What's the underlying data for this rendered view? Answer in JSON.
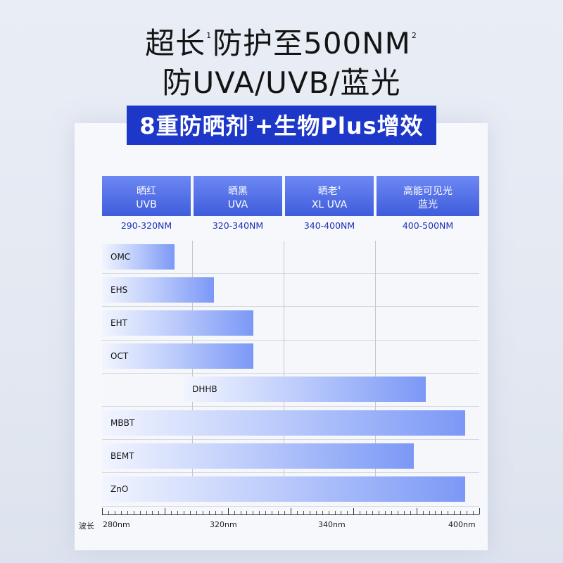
{
  "title": {
    "line1_parts": [
      "超长",
      "1",
      "防护至500NM",
      "2"
    ],
    "line2": "防UVA/UVB/蓝光"
  },
  "banner": {
    "text_before": "8重防晒剂",
    "sup": "3",
    "text_after": "+生物Plus增效"
  },
  "columns": [
    {
      "line1": "晒红",
      "sup": "",
      "line2": "UVB",
      "range": "290-320NM"
    },
    {
      "line1": "晒黑",
      "sup": "",
      "line2": "UVA",
      "range": "320-340NM"
    },
    {
      "line1": "晒老",
      "sup": "4",
      "line2": "XL UVA",
      "range": "340-400NM"
    },
    {
      "line1": "高能可见光",
      "sup": "",
      "line2": "蓝光",
      "range": "400-500NM"
    }
  ],
  "colors": {
    "banner": "#1d38c9",
    "header_gradient_top": "#6d88f3",
    "header_gradient_bottom": "#3f5cdc",
    "range_text": "#1b2fb8",
    "bar_start": "#f2f5fe",
    "bar_end": "#7b98f6"
  },
  "chart_data": {
    "type": "bar",
    "orientation": "horizontal-range",
    "categories": [
      "OMC",
      "EHS",
      "EHT",
      "OCT",
      "DHHB",
      "MBBT",
      "BEMT",
      "ZnO"
    ],
    "ranges": [
      {
        "name": "OMC",
        "start": 280,
        "end": 304
      },
      {
        "name": "EHS",
        "start": 280,
        "end": 317
      },
      {
        "name": "EHT",
        "start": 280,
        "end": 330
      },
      {
        "name": "OCT",
        "start": 280,
        "end": 330
      },
      {
        "name": "DHHB",
        "start": 307,
        "end": 387
      },
      {
        "name": "MBBT",
        "start": 280,
        "end": 400
      },
      {
        "name": "BEMT",
        "start": 280,
        "end": 383
      },
      {
        "name": "ZnO",
        "start": 280,
        "end": 400
      }
    ],
    "xlabel": "波长",
    "xticks": [
      "280nm",
      "320nm",
      "340nm",
      "400nm"
    ],
    "xlim": [
      280,
      400
    ],
    "grid": true
  }
}
